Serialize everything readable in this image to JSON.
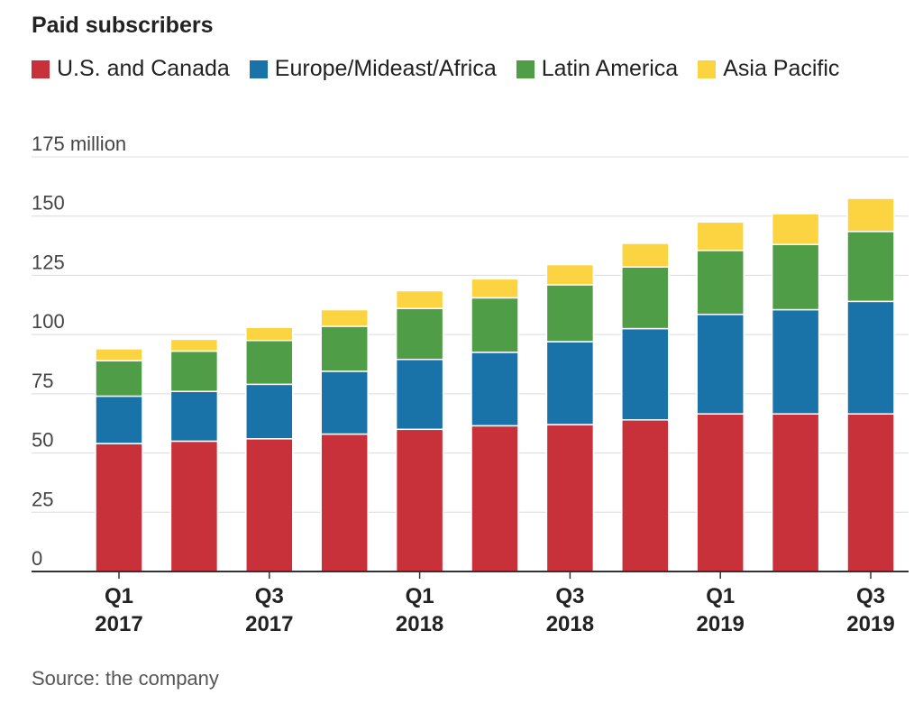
{
  "chart_data": {
    "type": "bar",
    "stacked": true,
    "title": "Paid subscribers",
    "source": "Source: the company",
    "ylim": [
      0,
      175
    ],
    "yticks": [
      {
        "value": 0,
        "label": "0"
      },
      {
        "value": 25,
        "label": "25"
      },
      {
        "value": 50,
        "label": "50"
      },
      {
        "value": 75,
        "label": "75"
      },
      {
        "value": 100,
        "label": "100"
      },
      {
        "value": 125,
        "label": "125"
      },
      {
        "value": 150,
        "label": "150"
      },
      {
        "value": 175,
        "label": "175 million"
      }
    ],
    "categories": [
      "Q1 2017",
      "Q2 2017",
      "Q3 2017",
      "Q4 2017",
      "Q1 2018",
      "Q2 2018",
      "Q3 2018",
      "Q4 2018",
      "Q1 2019",
      "Q2 2019",
      "Q3 2019"
    ],
    "xtick_labels": [
      {
        "index": 0,
        "line1": "Q1",
        "line2": "2017"
      },
      {
        "index": 2,
        "line1": "Q3",
        "line2": "2017"
      },
      {
        "index": 4,
        "line1": "Q1",
        "line2": "2018"
      },
      {
        "index": 6,
        "line1": "Q3",
        "line2": "2018"
      },
      {
        "index": 8,
        "line1": "Q1",
        "line2": "2019"
      },
      {
        "index": 10,
        "line1": "Q3",
        "line2": "2019"
      }
    ],
    "series": [
      {
        "name": "U.S. and Canada",
        "color": "#c8313a",
        "values": [
          54,
          55,
          56,
          58,
          60,
          61.5,
          62,
          64,
          66.5,
          66.5,
          66.5
        ]
      },
      {
        "name": "Europe/Mideast/Africa",
        "color": "#1a73a8",
        "values": [
          20,
          21,
          23,
          26.5,
          29.5,
          31,
          35,
          38.5,
          42,
          44,
          47.5
        ]
      },
      {
        "name": "Latin America",
        "color": "#4f9d47",
        "values": [
          15,
          17,
          18.5,
          19,
          21.5,
          23,
          24,
          26,
          27,
          27.5,
          29.5
        ]
      },
      {
        "name": "Asia Pacific",
        "color": "#fcd442",
        "values": [
          5,
          5,
          5.5,
          7,
          7.5,
          8,
          8.5,
          10,
          12,
          13,
          14
        ]
      }
    ],
    "grid": true,
    "legend_position": "top-left"
  }
}
